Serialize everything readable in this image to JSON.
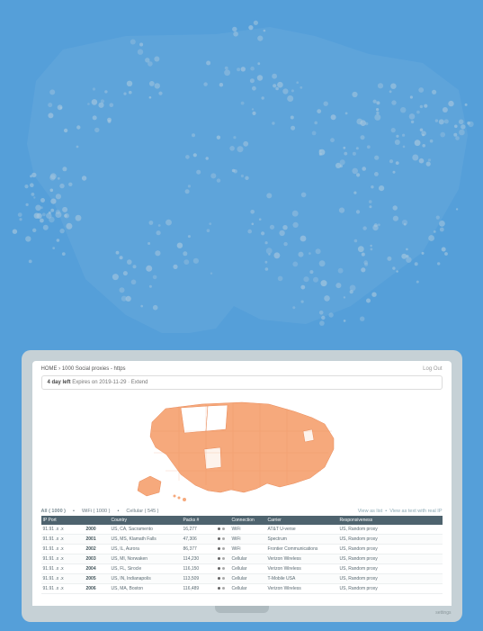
{
  "bg_map": {
    "fill": "#6ca9db",
    "point_color": "#d9e0e1",
    "point_count_hint": 200
  },
  "breadcrumb": {
    "home": "HOME",
    "sep": "›",
    "page_title": "1000 Social proxies - https"
  },
  "logout": "Log Out",
  "notice": {
    "prefix": "4 day left",
    "rest": "Expires on 2019-11-29 · Extend"
  },
  "tabs": {
    "all": {
      "label": "All",
      "count": "( 1000 )"
    },
    "wifi": {
      "label": "WiFi",
      "count": "( 1000 )"
    },
    "cellular": {
      "label": "Cellular",
      "count": "( 545 )"
    }
  },
  "actions": {
    "view_list": "View as list",
    "view_list_ip": "View as text with real IP"
  },
  "columns": {
    "ip": "IP Port",
    "port": "",
    "country": "Country",
    "packs": "Packs #",
    "s": "",
    "conn": "Connection",
    "carrier": "Carrier",
    "resp": "Responsiveness"
  },
  "rows": [
    {
      "ip": "91.91 .x .x",
      "port": "2000",
      "country": "US, CA, Sacramento",
      "packs": "16,277",
      "conn": "WiFi",
      "carrier": "AT&T U-verse",
      "resp": "US, Random proxy"
    },
    {
      "ip": "91.91 .x .x",
      "port": "2001",
      "country": "US, MS, Klamath Falls",
      "packs": "47,306",
      "conn": "WiFi",
      "carrier": "Spectrum",
      "resp": "US, Random proxy"
    },
    {
      "ip": "91.91 .x .x",
      "port": "2002",
      "country": "US, IL, Aurora",
      "packs": "86,377",
      "conn": "WiFi",
      "carrier": "Frontier Communications",
      "resp": "US, Random proxy"
    },
    {
      "ip": "91.91 .x .x",
      "port": "2003",
      "country": "US, MI, Norwaken",
      "packs": "114,230",
      "conn": "Cellular",
      "carrier": "Verizon Wireless",
      "resp": "US, Random proxy"
    },
    {
      "ip": "91.91 .x .x",
      "port": "2004",
      "country": "US, FL, Sirocle",
      "packs": "116,150",
      "conn": "Cellular",
      "carrier": "Verizon Wireless",
      "resp": "US, Random proxy"
    },
    {
      "ip": "91.91 .x .x",
      "port": "2005",
      "country": "US, IN, Indianapolis",
      "packs": "113,509",
      "conn": "Cellular",
      "carrier": "T-Mobile USA",
      "resp": "US, Random proxy"
    },
    {
      "ip": "91.91 .x .x",
      "port": "2006",
      "country": "US, MA, Boston",
      "packs": "116,489",
      "conn": "Cellular",
      "carrier": "Verizon Wireless",
      "resp": "US, Random proxy"
    }
  ],
  "app_map": {
    "fill": "#f6a97c",
    "stroke": "#e88a59",
    "background": "#ffffff"
  },
  "base_label": "settings"
}
